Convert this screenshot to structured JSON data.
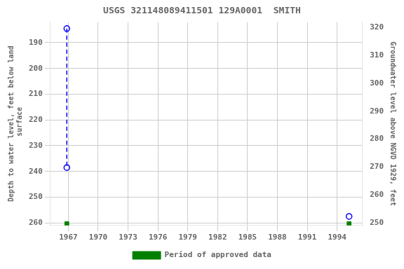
{
  "chart_data": {
    "type": "scatter",
    "title": "USGS 321148089411501 129A0001  SMITH",
    "y_label": "Depth to water level, feet below land\n surface",
    "y2_label": "Groundwater level above NGVD 1929, feet",
    "xlim": [
      1965.2,
      1996.5
    ],
    "xticks": [
      1967,
      1970,
      1973,
      1976,
      1979,
      1982,
      1985,
      1988,
      1991,
      1994
    ],
    "ylim": [
      261,
      182
    ],
    "yticks": [
      190,
      200,
      210,
      220,
      230,
      240,
      250,
      260
    ],
    "y2lim": [
      249,
      322
    ],
    "y2ticks": [
      250,
      260,
      270,
      280,
      290,
      300,
      310,
      320
    ],
    "grid": true,
    "legend": "bottom",
    "series": [
      {
        "type": "line",
        "line_style": "dashed",
        "color": "#0000ff",
        "x": [
          1966.85,
          1966.85
        ],
        "values": [
          184.5,
          238.5
        ]
      },
      {
        "marker": "open_circle",
        "color": "#0000ff",
        "x": [
          1966.85,
          1966.85,
          1995.2
        ],
        "values": [
          184.5,
          238.5,
          257.5
        ]
      },
      {
        "name": "Period of approved data",
        "marker": "square",
        "color": "#008000",
        "x": [
          1966.85,
          1995.2
        ],
        "values": [
          260.3,
          260.3
        ]
      }
    ]
  }
}
